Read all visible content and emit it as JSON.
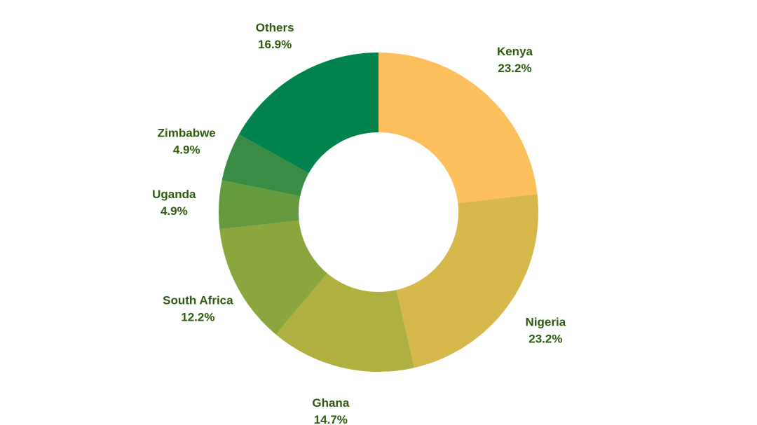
{
  "chart_data": {
    "type": "pie",
    "variant": "donut",
    "title": "",
    "unit": "%",
    "series": [
      {
        "values": [
          {
            "label": "Kenya",
            "value": 23.2,
            "display": "23.2%",
            "color": "#FDBE5C"
          },
          {
            "label": "Nigeria",
            "value": 23.2,
            "display": "23.2%",
            "color": "#D6B84B"
          },
          {
            "label": "Ghana",
            "value": 14.7,
            "display": "14.7%",
            "color": "#B0B040"
          },
          {
            "label": "South Africa",
            "value": 12.2,
            "display": "12.2%",
            "color": "#8BA63C"
          },
          {
            "label": "Uganda",
            "value": 4.9,
            "display": "4.9%",
            "color": "#659B3E"
          },
          {
            "label": "Zimbabwe",
            "value": 4.9,
            "display": "4.9%",
            "color": "#3A8C45"
          },
          {
            "label": "Others",
            "value": 16.9,
            "display": "16.9%",
            "color": "#00834D"
          }
        ]
      }
    ],
    "label_color": "#2F5A12",
    "start_angle": "12 o'clock",
    "direction": "clockwise",
    "legend": "none",
    "labels": "outside"
  }
}
